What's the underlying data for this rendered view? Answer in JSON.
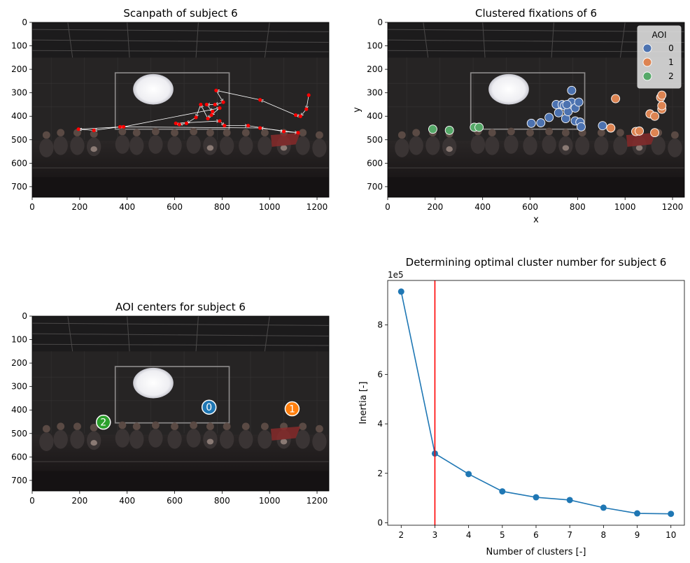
{
  "colors": {
    "aoi0": "#4c72b0",
    "aoi1": "#dd8452",
    "aoi2": "#55a868",
    "center0": "#1f77b4",
    "center1": "#ff7f0e",
    "center2": "#2ca02c",
    "elbow_line": "#1f77b4",
    "optimal_line": "#ff0000",
    "scanpath_point": "#ff0000",
    "scanpath_arrow": "#ffffff"
  },
  "chart_data": [
    {
      "type": "scatter",
      "title": "Scanpath of subject 6",
      "xlabel": "",
      "ylabel": "",
      "xlim": [
        0,
        1250
      ],
      "ylim": [
        745,
        0
      ],
      "xticks": [
        0,
        200,
        400,
        600,
        800,
        1000,
        1200
      ],
      "yticks": [
        0,
        100,
        200,
        300,
        400,
        500,
        600,
        700
      ],
      "background": "image",
      "points": [
        {
          "x": 1165,
          "y": 310
        },
        {
          "x": 1155,
          "y": 370
        },
        {
          "x": 1130,
          "y": 400
        },
        {
          "x": 1110,
          "y": 395
        },
        {
          "x": 960,
          "y": 330
        },
        {
          "x": 775,
          "y": 290
        },
        {
          "x": 805,
          "y": 340
        },
        {
          "x": 770,
          "y": 350
        },
        {
          "x": 735,
          "y": 350
        },
        {
          "x": 760,
          "y": 380
        },
        {
          "x": 740,
          "y": 410
        },
        {
          "x": 710,
          "y": 350
        },
        {
          "x": 690,
          "y": 405
        },
        {
          "x": 650,
          "y": 430
        },
        {
          "x": 620,
          "y": 435
        },
        {
          "x": 605,
          "y": 430
        },
        {
          "x": 790,
          "y": 420
        },
        {
          "x": 810,
          "y": 440
        },
        {
          "x": 910,
          "y": 440
        },
        {
          "x": 1060,
          "y": 465
        },
        {
          "x": 1120,
          "y": 470
        },
        {
          "x": 960,
          "y": 450
        },
        {
          "x": 370,
          "y": 445
        },
        {
          "x": 260,
          "y": 460
        },
        {
          "x": 195,
          "y": 455
        },
        {
          "x": 385,
          "y": 445
        },
        {
          "x": 790,
          "y": 365
        },
        {
          "x": 755,
          "y": 395
        }
      ]
    },
    {
      "type": "scatter",
      "title": "Clustered fixations of 6",
      "xlabel": "x",
      "ylabel": "y",
      "xlim": [
        0,
        1250
      ],
      "ylim": [
        745,
        0
      ],
      "xticks": [
        0,
        200,
        400,
        600,
        800,
        1000,
        1200
      ],
      "yticks": [
        0,
        100,
        200,
        300,
        400,
        500,
        600,
        700
      ],
      "legend": {
        "title": "AOI",
        "placement": "top-right",
        "entries": [
          "0",
          "1",
          "2"
        ]
      },
      "series": [
        {
          "name": "0",
          "points": [
            {
              "x": 605,
              "y": 430
            },
            {
              "x": 645,
              "y": 428
            },
            {
              "x": 680,
              "y": 405
            },
            {
              "x": 710,
              "y": 350
            },
            {
              "x": 720,
              "y": 385
            },
            {
              "x": 735,
              "y": 350
            },
            {
              "x": 745,
              "y": 355
            },
            {
              "x": 750,
              "y": 410
            },
            {
              "x": 760,
              "y": 380
            },
            {
              "x": 775,
              "y": 290
            },
            {
              "x": 775,
              "y": 340
            },
            {
              "x": 790,
              "y": 365
            },
            {
              "x": 790,
              "y": 420
            },
            {
              "x": 805,
              "y": 340
            },
            {
              "x": 810,
              "y": 425
            },
            {
              "x": 815,
              "y": 445
            },
            {
              "x": 905,
              "y": 440
            },
            {
              "x": 755,
              "y": 350
            }
          ]
        },
        {
          "name": "1",
          "points": [
            {
              "x": 960,
              "y": 325
            },
            {
              "x": 940,
              "y": 450
            },
            {
              "x": 1045,
              "y": 465
            },
            {
              "x": 1060,
              "y": 463
            },
            {
              "x": 1105,
              "y": 390
            },
            {
              "x": 1125,
              "y": 400
            },
            {
              "x": 1125,
              "y": 470
            },
            {
              "x": 1150,
              "y": 320
            },
            {
              "x": 1155,
              "y": 310
            },
            {
              "x": 1155,
              "y": 370
            },
            {
              "x": 1155,
              "y": 355
            }
          ]
        },
        {
          "name": "2",
          "points": [
            {
              "x": 190,
              "y": 455
            },
            {
              "x": 260,
              "y": 460
            },
            {
              "x": 365,
              "y": 447
            },
            {
              "x": 385,
              "y": 447
            }
          ]
        }
      ]
    },
    {
      "type": "scatter",
      "title": "AOI centers for subject 6",
      "xlabel": "",
      "ylabel": "",
      "xlim": [
        0,
        1250
      ],
      "ylim": [
        745,
        0
      ],
      "xticks": [
        0,
        200,
        400,
        600,
        800,
        1000,
        1200
      ],
      "yticks": [
        0,
        100,
        200,
        300,
        400,
        500,
        600,
        700
      ],
      "points": [
        {
          "label": "0",
          "x": 745,
          "y": 388
        },
        {
          "label": "1",
          "x": 1095,
          "y": 395
        },
        {
          "label": "2",
          "x": 300,
          "y": 452
        }
      ]
    },
    {
      "type": "line",
      "title": "Determining optimal cluster number for subject 6",
      "xlabel": "Number of clusters [-]",
      "ylabel": "Inertia [-]",
      "offset_label": "1e5",
      "x": [
        2,
        3,
        4,
        5,
        6,
        7,
        8,
        9,
        10
      ],
      "values": [
        9.35,
        2.8,
        1.97,
        1.27,
        1.03,
        0.92,
        0.61,
        0.38,
        0.36
      ],
      "xlim": [
        1.6,
        10.4
      ],
      "ylim": [
        -0.1,
        9.8
      ],
      "xticks": [
        2,
        3,
        4,
        5,
        6,
        7,
        8,
        9,
        10
      ],
      "yticks": [
        0,
        2,
        4,
        6,
        8
      ],
      "optimal_x": 3
    }
  ]
}
